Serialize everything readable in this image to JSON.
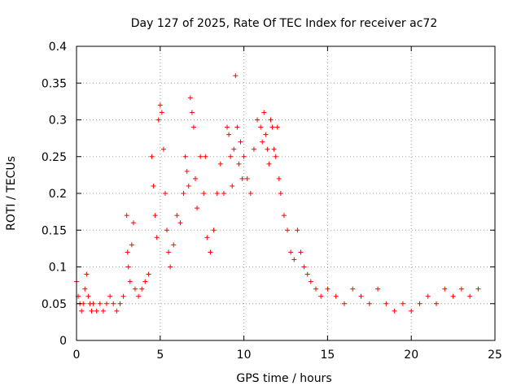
{
  "chart_data": {
    "type": "scatter",
    "title": "Day 127 of 2025, Rate Of TEC Index for receiver ac72",
    "xlabel": "GPS time / hours",
    "ylabel": "ROTI / TECUs",
    "xlim": [
      0,
      25
    ],
    "ylim": [
      0,
      0.4
    ],
    "xticks": [
      "0",
      "5",
      "10",
      "15",
      "20",
      "25"
    ],
    "yticks": [
      "0",
      "0.05",
      "0.1",
      "0.15",
      "0.2",
      "0.25",
      "0.3",
      "0.35",
      "0.4"
    ],
    "grid": true,
    "marker": "+",
    "color": "#ff0000",
    "series": [
      {
        "x": [
          0.0,
          0.1,
          0.2,
          0.3,
          0.4,
          0.5,
          0.6,
          0.7,
          0.8,
          0.9,
          1.0,
          1.2,
          1.4,
          1.6,
          1.8,
          2.0,
          2.2,
          2.4,
          2.6,
          2.8,
          3.0,
          3.05,
          3.1,
          3.2,
          3.3,
          3.4,
          3.5,
          3.7,
          3.9,
          4.1,
          4.3,
          4.5,
          4.6,
          4.7,
          4.8,
          4.9,
          5.0,
          5.1,
          5.2,
          5.3,
          5.4,
          5.5,
          5.6,
          5.8,
          6.0,
          6.2,
          6.4,
          6.5,
          6.6,
          6.7,
          6.8,
          6.9,
          7.0,
          7.1,
          7.2,
          7.4,
          7.6,
          7.7,
          7.8,
          8.0,
          8.2,
          8.4,
          8.6,
          8.8,
          9.0,
          9.1,
          9.2,
          9.3,
          9.4,
          9.5,
          9.6,
          9.7,
          9.8,
          9.9,
          10.0,
          10.2,
          10.4,
          10.6,
          10.8,
          11.0,
          11.1,
          11.2,
          11.3,
          11.4,
          11.5,
          11.6,
          11.7,
          11.8,
          11.9,
          12.0,
          12.1,
          12.2,
          12.4,
          12.6,
          12.8,
          13.0,
          13.2,
          13.4,
          13.6,
          13.8,
          14.0,
          14.3,
          14.6,
          15.0,
          15.5,
          16.0,
          16.5,
          17.0,
          17.5,
          18.0,
          18.5,
          19.0,
          19.5,
          20.0,
          20.5,
          21.0,
          21.5,
          22.0,
          22.5,
          23.0,
          23.5,
          24.0
        ],
        "y": [
          0.08,
          0.06,
          0.05,
          0.04,
          0.05,
          0.07,
          0.09,
          0.06,
          0.05,
          0.04,
          0.05,
          0.04,
          0.05,
          0.04,
          0.05,
          0.06,
          0.05,
          0.04,
          0.05,
          0.06,
          0.17,
          0.12,
          0.1,
          0.08,
          0.13,
          0.16,
          0.07,
          0.06,
          0.07,
          0.08,
          0.09,
          0.25,
          0.21,
          0.17,
          0.14,
          0.3,
          0.32,
          0.31,
          0.26,
          0.2,
          0.15,
          0.12,
          0.1,
          0.13,
          0.17,
          0.16,
          0.2,
          0.25,
          0.23,
          0.21,
          0.33,
          0.31,
          0.29,
          0.22,
          0.18,
          0.25,
          0.2,
          0.25,
          0.14,
          0.12,
          0.15,
          0.2,
          0.24,
          0.2,
          0.29,
          0.28,
          0.25,
          0.21,
          0.26,
          0.36,
          0.29,
          0.24,
          0.27,
          0.22,
          0.25,
          0.22,
          0.2,
          0.26,
          0.3,
          0.29,
          0.27,
          0.31,
          0.28,
          0.26,
          0.24,
          0.3,
          0.29,
          0.26,
          0.25,
          0.29,
          0.22,
          0.2,
          0.17,
          0.15,
          0.12,
          0.11,
          0.15,
          0.12,
          0.1,
          0.09,
          0.08,
          0.07,
          0.06,
          0.07,
          0.06,
          0.05,
          0.07,
          0.06,
          0.05,
          0.07,
          0.05,
          0.04,
          0.05,
          0.04,
          0.05,
          0.06,
          0.05,
          0.07,
          0.06,
          0.07,
          0.06,
          0.07
        ]
      }
    ]
  }
}
